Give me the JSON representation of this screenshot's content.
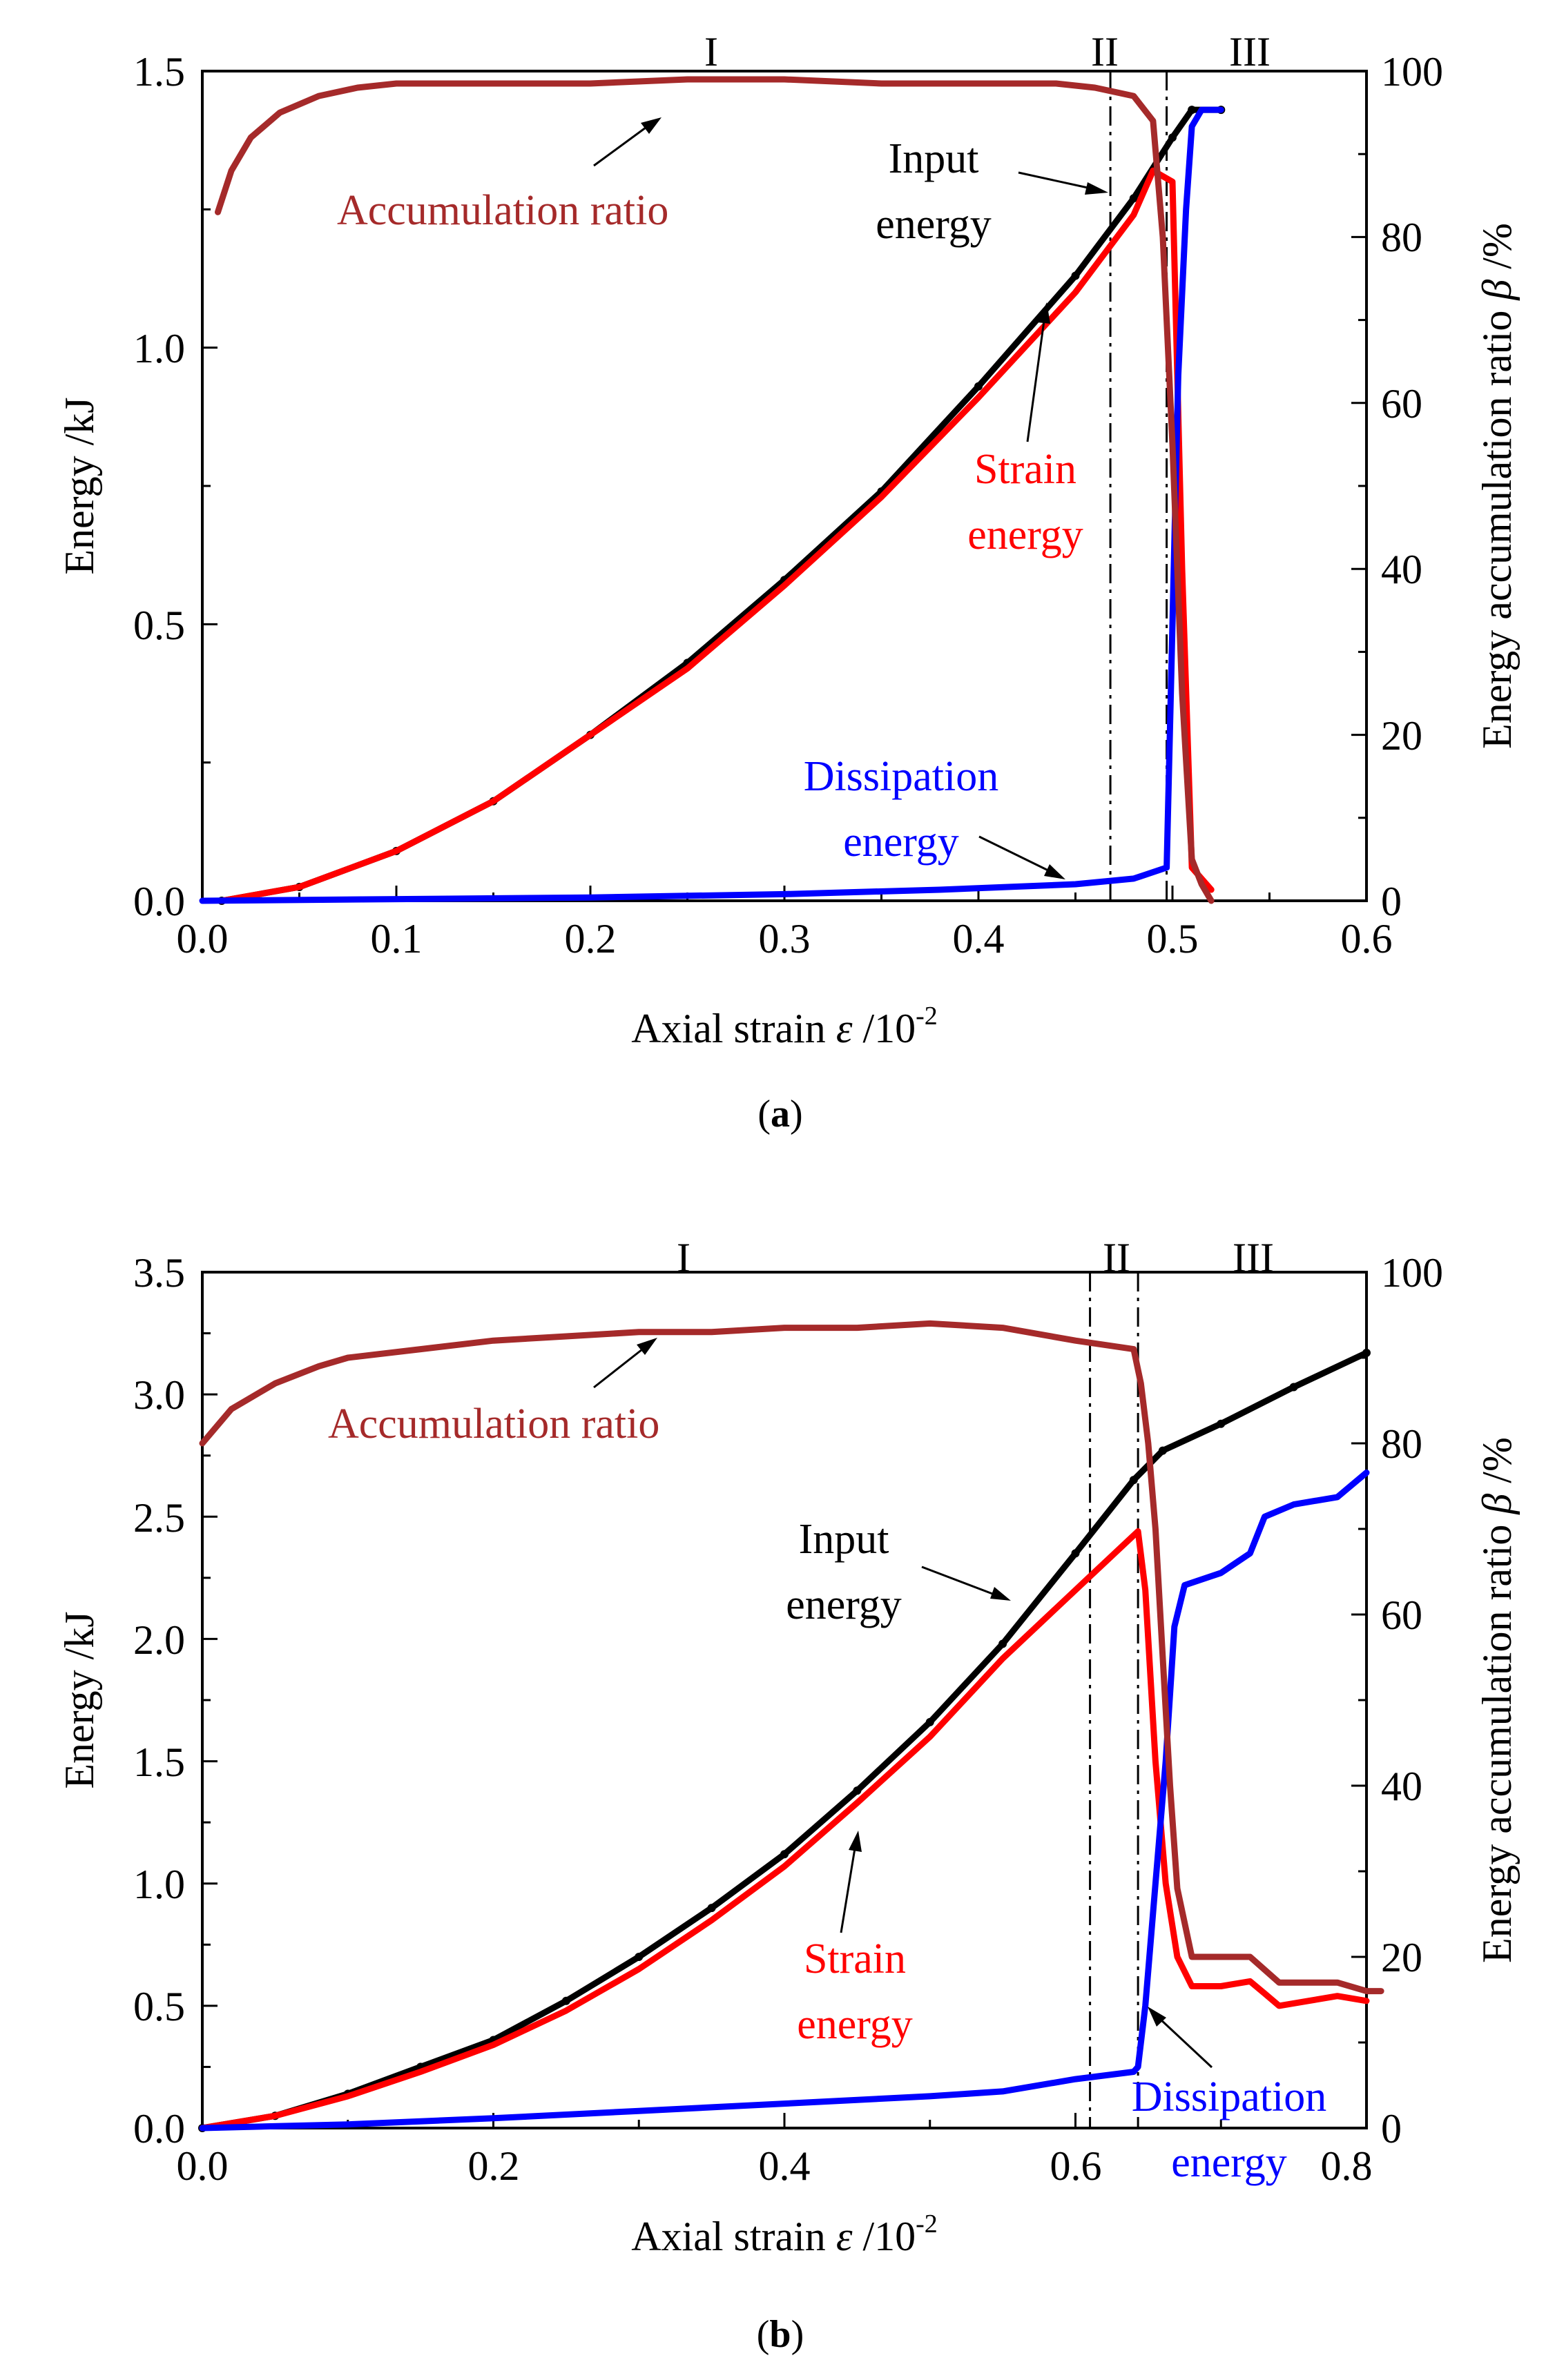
{
  "chart_data": [
    {
      "id": "a",
      "type": "line",
      "panel_label_open": "(",
      "panel_label_letter": "a",
      "panel_label_close": ")",
      "xlabel_prefix": "Axial strain ",
      "xlabel_symbol": "ε",
      "xlabel_unit": " /10",
      "xlabel_exp": "-2",
      "ylabel": "Energy /kJ",
      "y2label_prefix": "Energy accumulation ratio ",
      "y2label_symbol": "β",
      "y2label_unit": " /%",
      "xlim": [
        0,
        0.6
      ],
      "ylim": [
        0,
        1.5
      ],
      "y2lim": [
        0,
        100
      ],
      "xticks": [
        "0.0",
        "0.1",
        "0.2",
        "0.3",
        "0.4",
        "0.5",
        "0.6"
      ],
      "xtick_values": [
        0,
        0.1,
        0.2,
        0.3,
        0.4,
        0.5,
        0.6
      ],
      "yticks": [
        "0.0",
        "0.5",
        "1.0",
        "1.5"
      ],
      "ytick_values": [
        0,
        0.5,
        1.0,
        1.5
      ],
      "y2ticks": [
        "0",
        "20",
        "40",
        "60",
        "80",
        "100"
      ],
      "y2tick_values": [
        0,
        20,
        40,
        60,
        80,
        100
      ],
      "region_lines": [
        0.468,
        0.497
      ],
      "regions": [
        {
          "label": "I",
          "x": 0.24
        },
        {
          "label": "II",
          "x": 0.482
        },
        {
          "label": "III",
          "x": 0.545
        }
      ],
      "series": [
        {
          "name": "Input energy",
          "axis": "left",
          "color": "#000000",
          "x": [
            0.01,
            0.05,
            0.1,
            0.15,
            0.2,
            0.25,
            0.3,
            0.35,
            0.4,
            0.45,
            0.48,
            0.5,
            0.51,
            0.525
          ],
          "y": [
            0.0,
            0.025,
            0.09,
            0.18,
            0.3,
            0.43,
            0.58,
            0.74,
            0.93,
            1.13,
            1.27,
            1.38,
            1.43,
            1.43
          ]
        },
        {
          "name": "Strain energy",
          "axis": "left",
          "color": "#ff0000",
          "x": [
            0.01,
            0.05,
            0.1,
            0.15,
            0.2,
            0.25,
            0.3,
            0.35,
            0.4,
            0.45,
            0.48,
            0.49,
            0.5,
            0.505,
            0.51,
            0.52
          ],
          "y": [
            0.0,
            0.025,
            0.09,
            0.18,
            0.3,
            0.42,
            0.57,
            0.73,
            0.91,
            1.1,
            1.24,
            1.32,
            1.3,
            0.6,
            0.06,
            0.02
          ]
        },
        {
          "name": "Dissipation energy",
          "axis": "left",
          "color": "#0000ff",
          "x": [
            0.0,
            0.1,
            0.2,
            0.3,
            0.38,
            0.45,
            0.48,
            0.497,
            0.5,
            0.503,
            0.507,
            0.51,
            0.515,
            0.525
          ],
          "y": [
            0.0,
            0.003,
            0.006,
            0.012,
            0.02,
            0.03,
            0.04,
            0.06,
            0.5,
            0.95,
            1.25,
            1.4,
            1.43,
            1.43
          ]
        },
        {
          "name": "Accumulation ratio",
          "axis": "right",
          "color": "#a52a2a",
          "x": [
            0.008,
            0.015,
            0.025,
            0.04,
            0.06,
            0.08,
            0.1,
            0.15,
            0.2,
            0.25,
            0.3,
            0.35,
            0.4,
            0.44,
            0.46,
            0.48,
            0.49,
            0.495,
            0.5,
            0.505,
            0.51,
            0.515,
            0.52
          ],
          "y": [
            83,
            88,
            92,
            95,
            97,
            98,
            98.5,
            98.5,
            98.5,
            99,
            99,
            98.5,
            98.5,
            98.5,
            98,
            97,
            94,
            80,
            55,
            25,
            5,
            2,
            0
          ]
        }
      ],
      "annotations": [
        {
          "lines": [
            "Accumulation ratio"
          ],
          "color": "#a52a2a",
          "x": 0.185,
          "y": 1.25
        },
        {
          "lines": [
            "Input",
            "energy"
          ],
          "color": "#000000",
          "x": 0.4,
          "y": 1.39
        },
        {
          "lines": [
            "Strain",
            "energy"
          ],
          "color": "#ff0000",
          "x": 0.41,
          "y": 0.77
        },
        {
          "lines": [
            "Dissipation",
            "energy"
          ],
          "color": "#0000ff",
          "x": 0.357,
          "y": 0.2
        }
      ]
    },
    {
      "id": "b",
      "type": "line",
      "panel_label_open": "(",
      "panel_label_letter": "b",
      "panel_label_close": ")",
      "xlabel_prefix": "Axial strain ",
      "xlabel_symbol": "ε",
      "xlabel_unit": " /10",
      "xlabel_exp": "-2",
      "ylabel": "Energy /kJ",
      "y2label_prefix": "Energy accumulation ratio ",
      "y2label_symbol": "β",
      "y2label_unit": " /%",
      "xlim": [
        0,
        0.8
      ],
      "ylim": [
        0,
        3.5
      ],
      "y2lim": [
        0,
        100
      ],
      "xticks": [
        "0.0",
        "0.2",
        "0.4",
        "0.6",
        "0.8"
      ],
      "xtick_values": [
        0,
        0.2,
        0.4,
        0.6,
        0.8
      ],
      "yticks": [
        "0.0",
        "0.5",
        "1.0",
        "1.5",
        "2.0",
        "2.5",
        "3.0",
        "3.5"
      ],
      "ytick_values": [
        0,
        0.5,
        1.0,
        1.5,
        2.0,
        2.5,
        3.0,
        3.5
      ],
      "y2ticks": [
        "0",
        "20",
        "40",
        "60",
        "80",
        "100"
      ],
      "y2tick_values": [
        0,
        20,
        40,
        60,
        80,
        100
      ],
      "region_lines": [
        0.61,
        0.643
      ],
      "regions": [
        {
          "label": "I",
          "x": 0.33
        },
        {
          "label": "II",
          "x": 0.627
        },
        {
          "label": "III",
          "x": 0.72
        }
      ],
      "series": [
        {
          "name": "Input energy",
          "axis": "left",
          "color": "#000000",
          "x": [
            0.0,
            0.05,
            0.1,
            0.15,
            0.2,
            0.25,
            0.3,
            0.35,
            0.4,
            0.45,
            0.5,
            0.55,
            0.6,
            0.64,
            0.66,
            0.7,
            0.75,
            0.8
          ],
          "y": [
            0.0,
            0.05,
            0.14,
            0.25,
            0.36,
            0.52,
            0.7,
            0.9,
            1.12,
            1.38,
            1.66,
            1.98,
            2.35,
            2.65,
            2.77,
            2.88,
            3.03,
            3.17
          ]
        },
        {
          "name": "Strain energy",
          "axis": "left",
          "color": "#ff0000",
          "x": [
            0.0,
            0.05,
            0.1,
            0.15,
            0.2,
            0.25,
            0.3,
            0.35,
            0.4,
            0.45,
            0.5,
            0.55,
            0.6,
            0.643,
            0.648,
            0.655,
            0.662,
            0.67,
            0.68,
            0.7,
            0.72,
            0.73,
            0.74,
            0.76,
            0.78,
            0.8
          ],
          "y": [
            0.0,
            0.05,
            0.13,
            0.23,
            0.34,
            0.48,
            0.65,
            0.85,
            1.07,
            1.33,
            1.6,
            1.92,
            2.2,
            2.44,
            2.2,
            1.5,
            1.0,
            0.7,
            0.58,
            0.58,
            0.6,
            0.55,
            0.5,
            0.52,
            0.54,
            0.52
          ]
        },
        {
          "name": "Dissipation energy",
          "axis": "left",
          "color": "#0000ff",
          "x": [
            0.0,
            0.1,
            0.2,
            0.3,
            0.4,
            0.5,
            0.55,
            0.6,
            0.64,
            0.643,
            0.648,
            0.655,
            0.662,
            0.668,
            0.675,
            0.7,
            0.72,
            0.73,
            0.75,
            0.78,
            0.8
          ],
          "y": [
            0.0,
            0.015,
            0.04,
            0.07,
            0.1,
            0.13,
            0.15,
            0.2,
            0.23,
            0.25,
            0.5,
            1.0,
            1.5,
            2.05,
            2.22,
            2.27,
            2.35,
            2.5,
            2.55,
            2.58,
            2.68
          ]
        },
        {
          "name": "Accumulation ratio",
          "axis": "right",
          "color": "#a52a2a",
          "x": [
            0.0,
            0.02,
            0.05,
            0.08,
            0.1,
            0.15,
            0.2,
            0.25,
            0.3,
            0.35,
            0.4,
            0.45,
            0.5,
            0.55,
            0.6,
            0.64,
            0.645,
            0.65,
            0.655,
            0.66,
            0.665,
            0.67,
            0.68,
            0.7,
            0.72,
            0.74,
            0.76,
            0.78,
            0.8,
            0.81
          ],
          "y": [
            80,
            84,
            87,
            89,
            90,
            91,
            92,
            92.5,
            93,
            93,
            93.5,
            93.5,
            94,
            93.5,
            92,
            91,
            87,
            80,
            70,
            55,
            40,
            28,
            20,
            20,
            20,
            17,
            17,
            17,
            16,
            16
          ]
        }
      ],
      "annotations": [
        {
          "lines": [
            "Accumulation ratio"
          ],
          "color": "#a52a2a",
          "x": 0.24,
          "y": 2.87
        },
        {
          "lines": [
            "Input",
            "energy"
          ],
          "color": "#000000",
          "x": 0.4,
          "y": 2.17
        },
        {
          "lines": [
            "Strain",
            "energy"
          ],
          "color": "#ff0000",
          "x": 0.47,
          "y": 0.64
        },
        {
          "lines": [
            "Dissipation",
            "energy"
          ],
          "color": "#0000ff",
          "x": 0.72,
          "y": 0.04
        }
      ]
    }
  ]
}
